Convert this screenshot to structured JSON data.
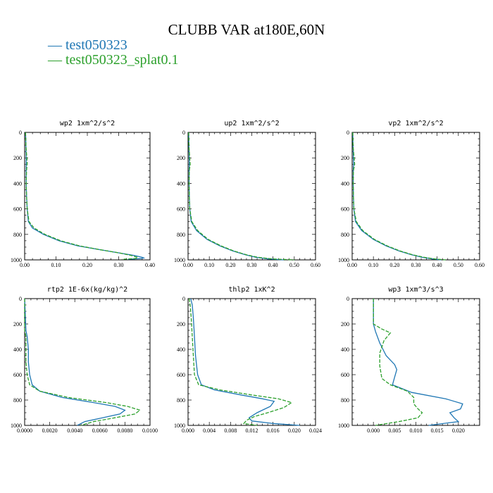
{
  "title": "CLUBB VAR at180E,60N",
  "legend": [
    {
      "name": "test050323",
      "color": "#1f77b4",
      "dash": "solid"
    },
    {
      "name": "test050323_splat0.1",
      "color": "#2ca02c",
      "dash": "dashed"
    }
  ],
  "chart_data": [
    {
      "type": "line",
      "title": "wp2  1xm^2/s^2",
      "xlim": [
        0,
        0.4
      ],
      "ylim": [
        1000,
        0
      ],
      "y_inverted": true,
      "xticks": [
        "0.00",
        "0.10",
        "0.20",
        "0.30",
        "0.40"
      ],
      "yticks": [
        "0",
        "200",
        "400",
        "600",
        "800",
        "1000"
      ],
      "series": [
        {
          "name": "test050323",
          "x": [
            0.003,
            0.004,
            0.005,
            0.005,
            0.005,
            0.006,
            0.008,
            0.012,
            0.025,
            0.06,
            0.11,
            0.17,
            0.24,
            0.3,
            0.35,
            0.375,
            0.38,
            0.37,
            0.33
          ],
          "y": [
            0,
            100,
            200,
            300,
            400,
            500,
            600,
            700,
            750,
            800,
            850,
            890,
            920,
            945,
            965,
            980,
            985,
            990,
            995
          ]
        },
        {
          "name": "test050323_splat0.1",
          "x": [
            0.003,
            0.004,
            0.008,
            0.006,
            0.005,
            0.006,
            0.008,
            0.014,
            0.03,
            0.065,
            0.115,
            0.175,
            0.24,
            0.3,
            0.34,
            0.36,
            0.36,
            0.35,
            0.31
          ],
          "y": [
            0,
            100,
            240,
            300,
            400,
            500,
            600,
            700,
            750,
            800,
            850,
            890,
            920,
            945,
            965,
            980,
            985,
            990,
            995
          ]
        }
      ]
    },
    {
      "type": "line",
      "title": "up2  1xm^2/s^2",
      "xlim": [
        0,
        0.6
      ],
      "ylim": [
        1000,
        0
      ],
      "y_inverted": true,
      "xticks": [
        "0.00",
        "0.10",
        "0.20",
        "0.30",
        "0.40",
        "0.50",
        "0.60"
      ],
      "yticks": [
        "0",
        "200",
        "400",
        "600",
        "800",
        "1000"
      ],
      "series": [
        {
          "name": "test050323",
          "x": [
            0.003,
            0.004,
            0.006,
            0.005,
            0.005,
            0.006,
            0.008,
            0.015,
            0.04,
            0.09,
            0.15,
            0.21,
            0.27,
            0.32,
            0.38,
            0.45
          ],
          "y": [
            0,
            100,
            250,
            300,
            400,
            500,
            600,
            700,
            770,
            840,
            890,
            930,
            960,
            980,
            993,
            1000
          ]
        },
        {
          "name": "test050323_splat0.1",
          "x": [
            0.003,
            0.004,
            0.01,
            0.006,
            0.005,
            0.006,
            0.008,
            0.018,
            0.045,
            0.095,
            0.155,
            0.215,
            0.275,
            0.33,
            0.4,
            0.5
          ],
          "y": [
            0,
            100,
            250,
            300,
            400,
            500,
            600,
            700,
            770,
            840,
            890,
            930,
            960,
            980,
            993,
            1000
          ]
        }
      ]
    },
    {
      "type": "line",
      "title": "vp2  1xm^2/s^2",
      "xlim": [
        0,
        0.6
      ],
      "ylim": [
        1000,
        0
      ],
      "y_inverted": true,
      "xticks": [
        "0.00",
        "0.10",
        "0.20",
        "0.30",
        "0.40",
        "0.50",
        "0.60"
      ],
      "yticks": [
        "0",
        "200",
        "400",
        "600",
        "800",
        "1000"
      ],
      "series": [
        {
          "name": "test050323",
          "x": [
            0.003,
            0.004,
            0.007,
            0.005,
            0.005,
            0.006,
            0.008,
            0.016,
            0.045,
            0.1,
            0.16,
            0.22,
            0.28,
            0.33,
            0.38,
            0.42
          ],
          "y": [
            0,
            100,
            250,
            300,
            400,
            500,
            600,
            700,
            770,
            840,
            890,
            930,
            960,
            980,
            993,
            1000
          ]
        },
        {
          "name": "test050323_splat0.1",
          "x": [
            0.003,
            0.004,
            0.012,
            0.006,
            0.005,
            0.006,
            0.008,
            0.02,
            0.05,
            0.105,
            0.165,
            0.225,
            0.285,
            0.34,
            0.39,
            0.44
          ],
          "y": [
            0,
            100,
            250,
            300,
            400,
            500,
            600,
            700,
            770,
            840,
            890,
            930,
            960,
            980,
            993,
            1000
          ]
        }
      ]
    },
    {
      "type": "line",
      "title": "rtp2  1E-6x(kg/kg)^2",
      "xlim": [
        0,
        0.01
      ],
      "ylim": [
        1000,
        0
      ],
      "y_inverted": true,
      "xticks": [
        "0.0000",
        "0.0020",
        "0.0040",
        "0.0060",
        "0.0080",
        "0.0100"
      ],
      "yticks": [
        "0",
        "200",
        "400",
        "600",
        "800",
        "1000"
      ],
      "series": [
        {
          "name": "test050323",
          "x": [
            0.0,
            0.0001,
            0.0002,
            0.0003,
            0.0003,
            0.0004,
            0.0006,
            0.0012,
            0.003,
            0.0055,
            0.0072,
            0.008,
            0.0076,
            0.0062,
            0.0048,
            0.0042
          ],
          "y": [
            0,
            250,
            300,
            400,
            500,
            600,
            680,
            730,
            780,
            820,
            850,
            880,
            910,
            940,
            970,
            1000
          ]
        },
        {
          "name": "test050323_splat0.1",
          "x": [
            0.0,
            0.0,
            0.0001,
            0.0001,
            0.0001,
            0.0002,
            0.0004,
            0.0012,
            0.0035,
            0.0065,
            0.0082,
            0.0092,
            0.0088,
            0.0072,
            0.0055,
            0.0045
          ],
          "y": [
            0,
            250,
            300,
            400,
            500,
            600,
            680,
            730,
            780,
            820,
            850,
            880,
            910,
            940,
            970,
            1000
          ]
        }
      ]
    },
    {
      "type": "line",
      "title": "thlp2  1xK^2",
      "xlim": [
        0,
        0.024
      ],
      "ylim": [
        1000,
        0
      ],
      "y_inverted": true,
      "xticks": [
        "0.000",
        "0.004",
        "0.008",
        "0.012",
        "0.016",
        "0.020",
        "0.024"
      ],
      "yticks": [
        "0",
        "200",
        "400",
        "600",
        "800",
        "1000"
      ],
      "series": [
        {
          "name": "test050323",
          "x": [
            0.0005,
            0.0008,
            0.001,
            0.0012,
            0.0014,
            0.0018,
            0.0025,
            0.005,
            0.01,
            0.014,
            0.0162,
            0.0155,
            0.013,
            0.0115,
            0.012,
            0.016,
            0.021
          ],
          "y": [
            0,
            50,
            150,
            300,
            450,
            600,
            680,
            720,
            760,
            790,
            810,
            850,
            900,
            940,
            965,
            985,
            1000
          ]
        },
        {
          "name": "test050323_splat0.1",
          "x": [
            0.0002,
            0.0004,
            0.0006,
            0.0008,
            0.001,
            0.0012,
            0.002,
            0.006,
            0.012,
            0.017,
            0.0195,
            0.018,
            0.015,
            0.0125,
            0.011,
            0.0105,
            0.013
          ],
          "y": [
            0,
            50,
            150,
            300,
            450,
            600,
            680,
            720,
            760,
            790,
            820,
            860,
            900,
            930,
            960,
            985,
            1000
          ]
        }
      ]
    },
    {
      "type": "line",
      "title": "wp3  1xm^3/s^3",
      "xlim": [
        -0.005,
        0.025
      ],
      "ylim": [
        1000,
        0
      ],
      "y_inverted": true,
      "xticks": [
        "0.000",
        "0.005",
        "0.010",
        "0.015",
        "0.020"
      ],
      "yticks": [
        "0",
        "200",
        "400",
        "600",
        "800",
        "1000"
      ],
      "series": [
        {
          "name": "test050323",
          "x": [
            0.0,
            0.0,
            0.0,
            0.0005,
            0.0015,
            0.003,
            0.005,
            0.0055,
            0.005,
            0.0045,
            0.009,
            0.017,
            0.021,
            0.0205,
            0.018,
            0.019,
            0.02,
            0.013
          ],
          "y": [
            0,
            100,
            200,
            260,
            350,
            450,
            520,
            560,
            620,
            680,
            740,
            790,
            830,
            870,
            900,
            940,
            970,
            1000
          ]
        },
        {
          "name": "test050323_splat0.1",
          "x": [
            0.0,
            0.0,
            0.0,
            0.002,
            0.004,
            0.0025,
            0.0015,
            0.0015,
            0.002,
            0.004,
            0.008,
            0.0095,
            0.0095,
            0.0105,
            0.0115,
            0.0105,
            0.006,
            0.0005
          ],
          "y": [
            0,
            100,
            200,
            240,
            270,
            330,
            430,
            530,
            630,
            680,
            730,
            780,
            830,
            870,
            900,
            940,
            970,
            1000
          ]
        }
      ]
    }
  ]
}
